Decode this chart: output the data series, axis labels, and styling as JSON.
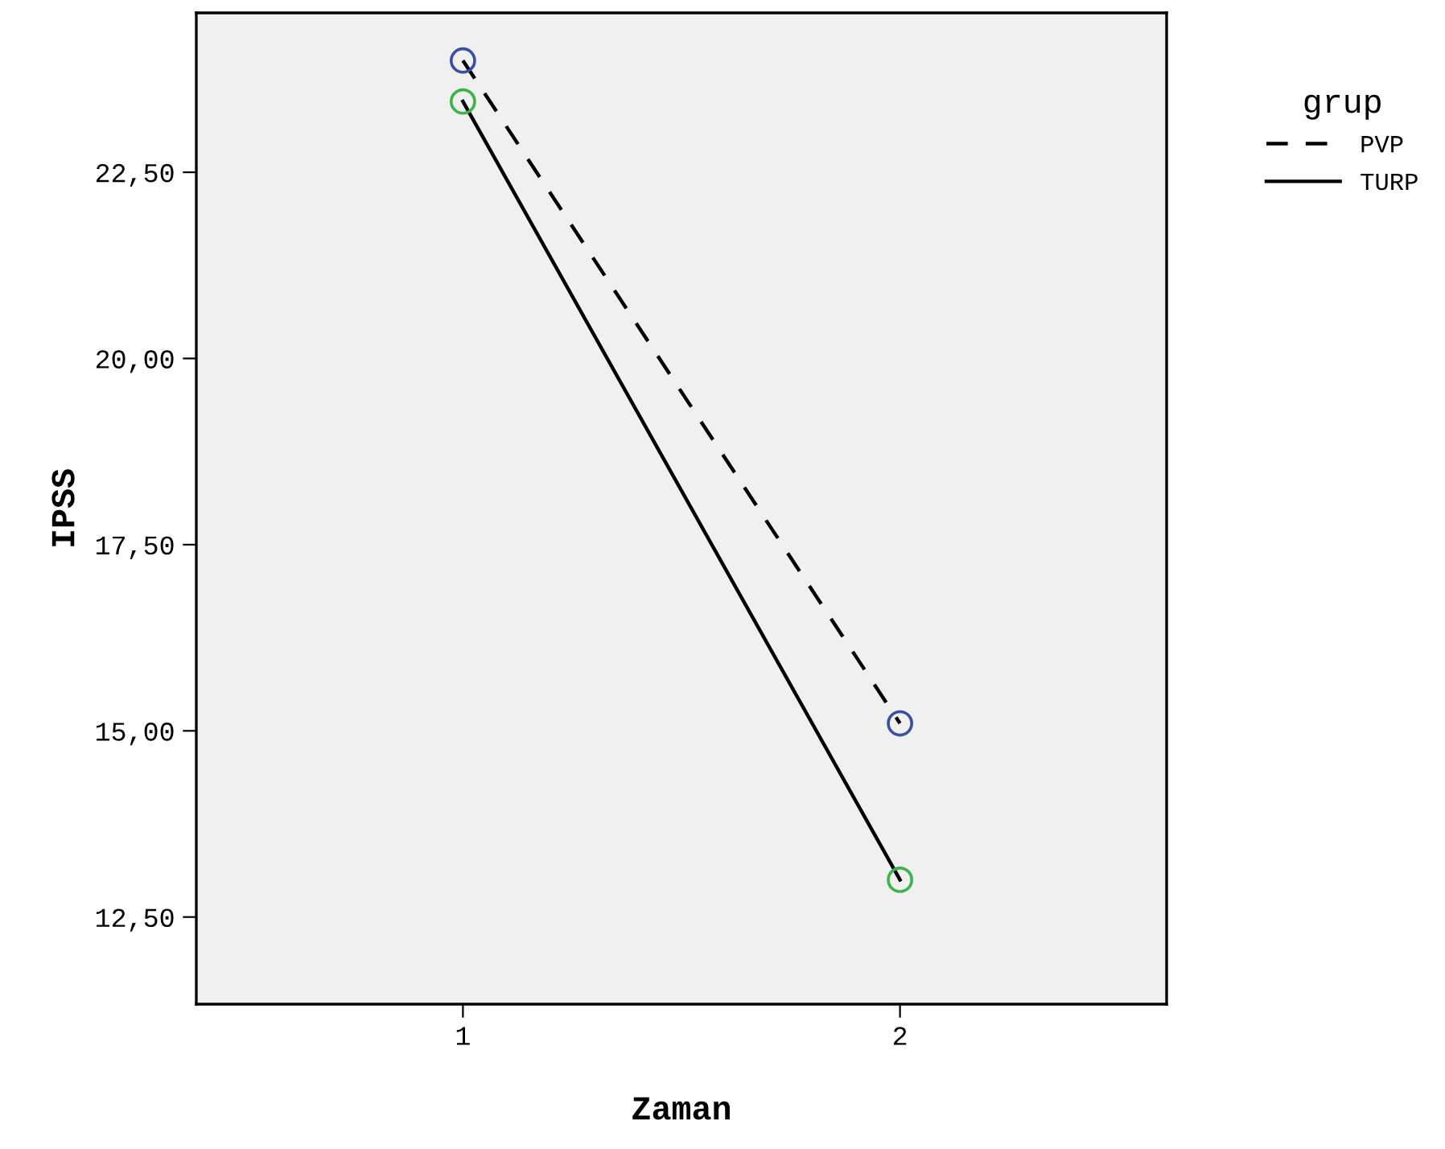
{
  "chart_data": {
    "type": "line",
    "xlabel": "Zaman",
    "ylabel": "IPSS",
    "legend_title": "grup",
    "legend": "right",
    "grid": false,
    "categories": [
      "1",
      "2"
    ],
    "ylim": [
      11.33,
      24.64
    ],
    "yticks": [
      {
        "value": 12.5,
        "label": "12,50"
      },
      {
        "value": 15,
        "label": "15,00"
      },
      {
        "value": 17.5,
        "label": "17,50"
      },
      {
        "value": 20,
        "label": "20,00"
      },
      {
        "value": 22.5,
        "label": "22,50"
      }
    ],
    "series": [
      {
        "name": "PVP",
        "line_style": "dashed",
        "color": "#000000",
        "values": [
          24.0,
          15.1
        ]
      },
      {
        "name": "TURP",
        "line_style": "solid",
        "color": "#000000",
        "values": [
          23.45,
          13.0
        ]
      },
      {
        "type": "scatter",
        "marker": "circle",
        "color": "#3a4fa0",
        "values": [
          24.0,
          15.1
        ]
      },
      {
        "type": "scatter",
        "marker": "circle",
        "color": "#3cb44b",
        "values": [
          23.45,
          13.0
        ]
      }
    ]
  }
}
